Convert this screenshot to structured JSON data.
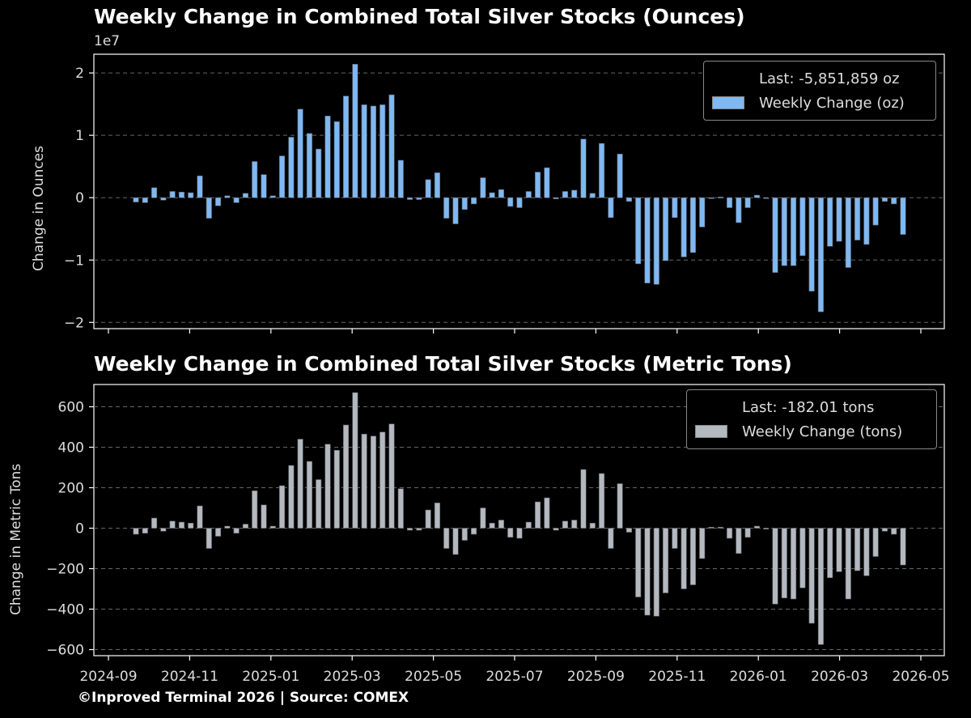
{
  "footer": "©Inproved Terminal 2026 | Source: COMEX",
  "colors": {
    "background": "#000000",
    "ounces_bar": "#7fb8f2",
    "tons_bar": "#b4b8bf",
    "grid": "#666666"
  },
  "chart_data": [
    {
      "type": "bar",
      "title": "Weekly Change in Combined Total Silver Stocks (Ounces)",
      "ylabel": "Change in Ounces",
      "y_exponent_label": "1e7",
      "ylim": [
        -2.1,
        2.3
      ],
      "yticks": [
        -2,
        -1,
        0,
        1,
        2
      ],
      "ytick_labels": [
        "−2",
        "−1",
        "0",
        "1",
        "2"
      ],
      "grid": "horizontal dashed",
      "legend_position": "top-right",
      "legend_last_label": "Last: -5,851,859 oz",
      "series": [
        {
          "name": "Weekly Change (oz)",
          "values": [
            -0.07,
            -0.08,
            0.16,
            -0.04,
            0.1,
            0.09,
            0.08,
            0.35,
            -0.33,
            -0.13,
            0.03,
            -0.08,
            0.07,
            0.58,
            0.37,
            0.03,
            0.67,
            0.97,
            1.42,
            1.03,
            0.78,
            1.31,
            1.22,
            1.63,
            2.14,
            1.49,
            1.47,
            1.49,
            1.65,
            0.6,
            -0.03,
            -0.03,
            0.29,
            0.4,
            -0.33,
            -0.42,
            -0.19,
            -0.1,
            0.32,
            0.08,
            0.13,
            -0.14,
            -0.16,
            0.1,
            0.41,
            0.48,
            -0.02,
            0.1,
            0.12,
            0.94,
            0.07,
            0.87,
            -0.32,
            0.7,
            -0.06,
            -1.06,
            -1.37,
            -1.39,
            -1.01,
            -0.32,
            -0.95,
            -0.88,
            -0.47,
            0.0,
            0.01,
            -0.16,
            -0.4,
            -0.16,
            0.04,
            0.0,
            -1.2,
            -1.09,
            -1.09,
            -0.93,
            -1.5,
            -1.83,
            -0.78,
            -0.7,
            -1.12,
            -0.68,
            -0.75,
            -0.44,
            -0.06,
            -0.1,
            -0.59
          ]
        }
      ]
    },
    {
      "type": "bar",
      "title": "Weekly Change in Combined Total Silver Stocks (Metric Tons)",
      "ylabel": "Change in Metric Tons",
      "ylim": [
        -630,
        710
      ],
      "yticks": [
        -600,
        -400,
        -200,
        0,
        200,
        400,
        600
      ],
      "ytick_labels": [
        "−600",
        "−400",
        "−200",
        "0",
        "200",
        "400",
        "600"
      ],
      "xticks": [
        "2024-09",
        "2024-11",
        "2025-01",
        "2025-03",
        "2025-05",
        "2025-07",
        "2025-09",
        "2025-11",
        "2026-01",
        "2026-03",
        "2026-05"
      ],
      "grid": "horizontal dashed",
      "legend_position": "top-right",
      "legend_last_label": "Last: -182.01 tons",
      "series": [
        {
          "name": "Weekly Change (tons)",
          "values": [
            -30,
            -25,
            50,
            -15,
            35,
            30,
            25,
            110,
            -100,
            -40,
            10,
            -25,
            20,
            185,
            115,
            10,
            210,
            310,
            440,
            330,
            240,
            415,
            385,
            510,
            670,
            465,
            455,
            475,
            515,
            195,
            -10,
            -10,
            90,
            125,
            -100,
            -130,
            -60,
            -30,
            100,
            25,
            40,
            -45,
            -50,
            30,
            130,
            150,
            -10,
            35,
            40,
            290,
            25,
            270,
            -100,
            220,
            -20,
            -340,
            -430,
            -435,
            -320,
            -100,
            -300,
            -280,
            -150,
            5,
            5,
            -50,
            -125,
            -45,
            10,
            0,
            -375,
            -345,
            -350,
            -295,
            -470,
            -575,
            -245,
            -215,
            -350,
            -210,
            -235,
            -140,
            -15,
            -30,
            -182
          ]
        }
      ]
    }
  ]
}
